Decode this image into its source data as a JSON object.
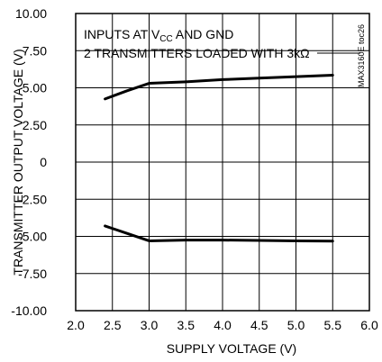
{
  "chart_data": {
    "type": "line",
    "xlabel": "SUPPLY VOLTAGE (V)",
    "ylabel": "TRANSMITTER OUTPUT VOLTAGE (V)",
    "xlim": [
      2.0,
      6.0
    ],
    "ylim": [
      -10.0,
      10.0
    ],
    "x_ticks": [
      "2.0",
      "2.5",
      "3.0",
      "3.5",
      "4.0",
      "4.5",
      "5.0",
      "5.5",
      "6.0"
    ],
    "y_ticks": [
      "10.00",
      "7.50",
      "5.00",
      "2.50",
      "0",
      "-2.50",
      "-5.00",
      "-7.50",
      "-10.00"
    ],
    "grid": true,
    "annotation_line1_prefix": "INPUTS AT V",
    "annotation_line1_sub": "CC",
    "annotation_line1_suffix": " AND GND",
    "annotation_line2": "2 TRANSMITTERS LOADED WITH 3kΩ",
    "watermark": "MAX3160E toc26",
    "series": [
      {
        "x": [
          2.4,
          2.7,
          3.0,
          3.5,
          4.0,
          4.5,
          5.0,
          5.5
        ],
        "y": [
          4.25,
          4.8,
          5.3,
          5.4,
          5.55,
          5.65,
          5.75,
          5.85
        ]
      },
      {
        "x": [
          2.4,
          2.7,
          3.0,
          3.5,
          4.0,
          4.5,
          5.0,
          5.5
        ],
        "y": [
          -4.3,
          -4.8,
          -5.3,
          -5.25,
          -5.25,
          -5.27,
          -5.3,
          -5.32
        ]
      }
    ]
  }
}
